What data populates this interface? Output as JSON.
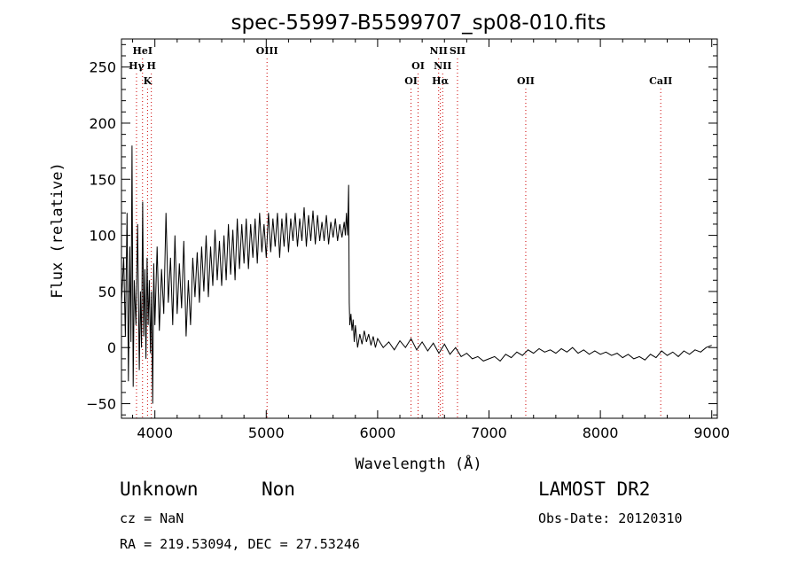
{
  "chart_data": {
    "type": "line",
    "title": "spec-55997-B5599707_sp08-010.fits",
    "xlabel": "Wavelength (Å)",
    "ylabel": "Flux (relative)",
    "xlim": [
      3700,
      9050
    ],
    "ylim": [
      -63,
      275
    ],
    "xticks": [
      4000,
      5000,
      6000,
      7000,
      8000,
      9000
    ],
    "yticks": [
      -50,
      0,
      50,
      100,
      150,
      200,
      250
    ],
    "grid": false,
    "series": [
      {
        "points": [
          [
            3700,
            40
          ],
          [
            3720,
            80
          ],
          [
            3735,
            10
          ],
          [
            3750,
            120
          ],
          [
            3762,
            -30
          ],
          [
            3775,
            90
          ],
          [
            3785,
            5
          ],
          [
            3795,
            180
          ],
          [
            3805,
            -35
          ],
          [
            3815,
            60
          ],
          [
            3830,
            20
          ],
          [
            3845,
            110
          ],
          [
            3860,
            -20
          ],
          [
            3870,
            50
          ],
          [
            3880,
            0
          ],
          [
            3890,
            130
          ],
          [
            3900,
            10
          ],
          [
            3910,
            70
          ],
          [
            3920,
            -10
          ],
          [
            3930,
            80
          ],
          [
            3940,
            20
          ],
          [
            3950,
            60
          ],
          [
            3960,
            -5
          ],
          [
            3970,
            50
          ],
          [
            3980,
            -50
          ],
          [
            3990,
            75
          ],
          [
            4000,
            20
          ],
          [
            4020,
            90
          ],
          [
            4040,
            15
          ],
          [
            4060,
            70
          ],
          [
            4080,
            30
          ],
          [
            4100,
            120
          ],
          [
            4120,
            40
          ],
          [
            4140,
            80
          ],
          [
            4160,
            20
          ],
          [
            4180,
            100
          ],
          [
            4200,
            30
          ],
          [
            4220,
            75
          ],
          [
            4240,
            35
          ],
          [
            4260,
            95
          ],
          [
            4280,
            10
          ],
          [
            4300,
            60
          ],
          [
            4320,
            20
          ],
          [
            4340,
            80
          ],
          [
            4360,
            45
          ],
          [
            4380,
            85
          ],
          [
            4400,
            40
          ],
          [
            4420,
            90
          ],
          [
            4440,
            50
          ],
          [
            4460,
            100
          ],
          [
            4480,
            45
          ],
          [
            4500,
            90
          ],
          [
            4520,
            55
          ],
          [
            4540,
            105
          ],
          [
            4560,
            60
          ],
          [
            4580,
            95
          ],
          [
            4600,
            55
          ],
          [
            4620,
            100
          ],
          [
            4640,
            60
          ],
          [
            4660,
            110
          ],
          [
            4680,
            65
          ],
          [
            4700,
            105
          ],
          [
            4720,
            60
          ],
          [
            4740,
            115
          ],
          [
            4760,
            70
          ],
          [
            4780,
            110
          ],
          [
            4800,
            75
          ],
          [
            4820,
            115
          ],
          [
            4840,
            70
          ],
          [
            4860,
            110
          ],
          [
            4880,
            80
          ],
          [
            4900,
            115
          ],
          [
            4920,
            75
          ],
          [
            4940,
            120
          ],
          [
            4960,
            85
          ],
          [
            4980,
            110
          ],
          [
            5000,
            80
          ],
          [
            5020,
            120
          ],
          [
            5040,
            85
          ],
          [
            5060,
            115
          ],
          [
            5080,
            90
          ],
          [
            5100,
            120
          ],
          [
            5120,
            80
          ],
          [
            5140,
            115
          ],
          [
            5160,
            90
          ],
          [
            5180,
            120
          ],
          [
            5200,
            85
          ],
          [
            5220,
            115
          ],
          [
            5240,
            95
          ],
          [
            5260,
            120
          ],
          [
            5280,
            90
          ],
          [
            5300,
            115
          ],
          [
            5320,
            95
          ],
          [
            5340,
            125
          ],
          [
            5360,
            90
          ],
          [
            5380,
            118
          ],
          [
            5400,
            95
          ],
          [
            5420,
            122
          ],
          [
            5440,
            92
          ],
          [
            5460,
            118
          ],
          [
            5480,
            95
          ],
          [
            5500,
            112
          ],
          [
            5520,
            95
          ],
          [
            5540,
            118
          ],
          [
            5560,
            92
          ],
          [
            5580,
            112
          ],
          [
            5600,
            98
          ],
          [
            5620,
            115
          ],
          [
            5640,
            95
          ],
          [
            5660,
            110
          ],
          [
            5680,
            98
          ],
          [
            5700,
            112
          ],
          [
            5710,
            100
          ],
          [
            5720,
            120
          ],
          [
            5730,
            100
          ],
          [
            5740,
            145
          ],
          [
            5745,
            40
          ],
          [
            5750,
            20
          ],
          [
            5760,
            30
          ],
          [
            5770,
            15
          ],
          [
            5780,
            25
          ],
          [
            5790,
            5
          ],
          [
            5800,
            20
          ],
          [
            5820,
            0
          ],
          [
            5840,
            12
          ],
          [
            5860,
            3
          ],
          [
            5880,
            15
          ],
          [
            5900,
            5
          ],
          [
            5920,
            12
          ],
          [
            5940,
            2
          ],
          [
            5960,
            10
          ],
          [
            5980,
            0
          ],
          [
            6000,
            8
          ],
          [
            6050,
            0
          ],
          [
            6100,
            5
          ],
          [
            6150,
            -2
          ],
          [
            6200,
            6
          ],
          [
            6250,
            0
          ],
          [
            6300,
            8
          ],
          [
            6350,
            -2
          ],
          [
            6400,
            5
          ],
          [
            6450,
            -3
          ],
          [
            6500,
            4
          ],
          [
            6550,
            -5
          ],
          [
            6600,
            3
          ],
          [
            6650,
            -6
          ],
          [
            6700,
            0
          ],
          [
            6750,
            -8
          ],
          [
            6800,
            -5
          ],
          [
            6850,
            -10
          ],
          [
            6900,
            -8
          ],
          [
            6950,
            -12
          ],
          [
            7000,
            -10
          ],
          [
            7050,
            -8
          ],
          [
            7100,
            -12
          ],
          [
            7150,
            -6
          ],
          [
            7200,
            -9
          ],
          [
            7250,
            -4
          ],
          [
            7300,
            -7
          ],
          [
            7350,
            -2
          ],
          [
            7400,
            -5
          ],
          [
            7450,
            -1
          ],
          [
            7500,
            -4
          ],
          [
            7550,
            -2
          ],
          [
            7600,
            -5
          ],
          [
            7650,
            -1
          ],
          [
            7700,
            -4
          ],
          [
            7750,
            0
          ],
          [
            7800,
            -5
          ],
          [
            7850,
            -2
          ],
          [
            7900,
            -6
          ],
          [
            7950,
            -3
          ],
          [
            8000,
            -6
          ],
          [
            8050,
            -4
          ],
          [
            8100,
            -7
          ],
          [
            8150,
            -5
          ],
          [
            8200,
            -9
          ],
          [
            8250,
            -6
          ],
          [
            8300,
            -10
          ],
          [
            8350,
            -8
          ],
          [
            8400,
            -11
          ],
          [
            8450,
            -6
          ],
          [
            8500,
            -9
          ],
          [
            8550,
            -3
          ],
          [
            8600,
            -7
          ],
          [
            8650,
            -4
          ],
          [
            8700,
            -8
          ],
          [
            8750,
            -3
          ],
          [
            8800,
            -6
          ],
          [
            8850,
            -2
          ],
          [
            8900,
            -4
          ],
          [
            8950,
            0
          ],
          [
            9000,
            2
          ]
        ]
      }
    ],
    "lines": [
      {
        "label": "HeI",
        "wavelength": 3889,
        "row": 0
      },
      {
        "label": "Hγ",
        "wavelength": 3835,
        "row": 1
      },
      {
        "label": "H",
        "wavelength": 3968,
        "row": 1
      },
      {
        "label": "K",
        "wavelength": 3934,
        "row": 2
      },
      {
        "label": "OIII",
        "wavelength": 5007,
        "row": 0
      },
      {
        "label": "OI",
        "wavelength": 6363,
        "row": 1
      },
      {
        "label": "OI",
        "wavelength": 6300,
        "row": 2
      },
      {
        "label": "NII",
        "wavelength": 6548,
        "row": 0
      },
      {
        "label": "SII",
        "wavelength": 6717,
        "row": 0
      },
      {
        "label": "NII",
        "wavelength": 6584,
        "row": 1
      },
      {
        "label": "Hα",
        "wavelength": 6563,
        "row": 2
      },
      {
        "label": "OII",
        "wavelength": 7330,
        "row": 2
      },
      {
        "label": "CaII",
        "wavelength": 8542,
        "row": 2
      }
    ]
  },
  "footer": {
    "class_label": "Unknown",
    "subclass_label": "Non",
    "survey": "LAMOST DR2",
    "cz": "cz = NaN",
    "obs_date": "Obs-Date: 20120310",
    "coords": "RA = 219.53094, DEC =  27.53246"
  }
}
